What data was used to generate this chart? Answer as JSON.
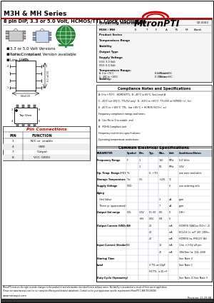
{
  "title_series": "M3H & MH Series",
  "title_main": "8 pin DIP, 3.3 or 5.0 Volt, HCMOS/TTL Clock Oscillator",
  "logo_text": "MtronPTI",
  "bg_color": "#ffffff",
  "bullet_points": [
    "3.3 or 5.0 Volt Versions",
    "RoHs Compliant Version available",
    "Low Jitter"
  ],
  "pin_connections": {
    "title": "Pin Connections",
    "headers": [
      "PIN",
      "FUNCTION"
    ],
    "rows": [
      [
        "1",
        "N/C or  enable"
      ],
      [
        "4",
        "GND"
      ],
      [
        "7",
        "Output"
      ],
      [
        "8",
        "VCC (VDD)"
      ]
    ]
  },
  "ordering_title": "Ordering Information",
  "ordering_code": "02.0003",
  "ordering_cols": [
    "M3H / MH",
    "E",
    "T",
    "F",
    "A",
    "75",
    "M",
    "Blank"
  ],
  "elec_table_title": "Common Electrical Specifications",
  "table_header": [
    "PARAMETER",
    "Symbol",
    "Min.",
    "Typ.",
    "Max.",
    "Unit",
    "Conditions/Notes"
  ],
  "footer_text1": "MtronPTI reserves the right to make changes to the product(s) and information described herein without notice. No liability is assumed as a result of their use or application.",
  "footer_text2": "Please see www.mtronpti.com for our complete offering and detailed datasheets. Contact us for your application specific requirements MtronPTI 1-888-763-88088.",
  "rev_text": "Revision: 21-29-08",
  "header_color": "#ffffff",
  "red_line_color": "#cc0000",
  "table_header_bg": "#c8d0dc",
  "table_alt_bg": "#e8ecf4",
  "orange_highlight": "#f4a460",
  "ordering_box_bg": "#f5f5f5"
}
